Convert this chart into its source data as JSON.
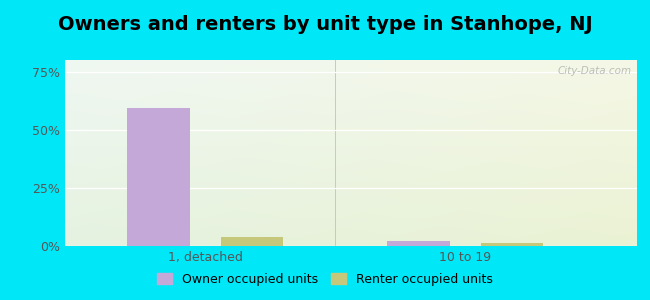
{
  "title": "Owners and renters by unit type in Stanhope, NJ",
  "categories": [
    "1, detached",
    "10 to 19"
  ],
  "owner_values": [
    0.595,
    0.022
  ],
  "renter_values": [
    0.038,
    0.012
  ],
  "owner_color": "#c4a8d8",
  "renter_color": "#c5c87a",
  "bar_width": 0.12,
  "ylim": [
    0,
    0.8
  ],
  "yticks": [
    0.0,
    0.25,
    0.5,
    0.75
  ],
  "yticklabels": [
    "0%",
    "25%",
    "50%",
    "75%"
  ],
  "outer_bg": "#00e8f8",
  "watermark": "City-Data.com",
  "legend_owner": "Owner occupied units",
  "legend_renter": "Renter occupied units",
  "title_fontsize": 14,
  "axis_fontsize": 9,
  "legend_fontsize": 9,
  "x_positions": [
    0.22,
    0.72
  ],
  "bar_gap": 0.06
}
